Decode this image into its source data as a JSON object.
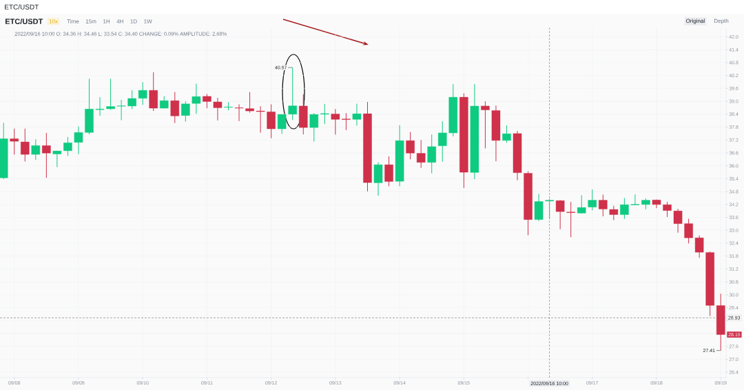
{
  "chart_data": {
    "type": "candlestick",
    "title": "ETC/USDT",
    "subtitle": "2022/09/16 10:00 O: 34.36 H: 34.46 L: 33.54 C: 34.40 CHANGE: 0.09% AMPLITUDE: 2.68%",
    "x": [
      "2022-09-07T22:00",
      "2022-09-08T02:00",
      "2022-09-08T06:00",
      "2022-09-08T10:00",
      "2022-09-08T14:00",
      "2022-09-08T18:00",
      "2022-09-08T22:00",
      "2022-09-09T02:00",
      "2022-09-09T06:00",
      "2022-09-09T10:00",
      "2022-09-09T14:00",
      "2022-09-09T18:00",
      "2022-09-09T22:00",
      "2022-09-10T02:00",
      "2022-09-10T06:00",
      "2022-09-10T10:00",
      "2022-09-10T14:00",
      "2022-09-10T18:00",
      "2022-09-10T22:00",
      "2022-09-11T02:00",
      "2022-09-11T06:00",
      "2022-09-11T10:00",
      "2022-09-11T14:00",
      "2022-09-11T18:00",
      "2022-09-11T22:00",
      "2022-09-12T02:00",
      "2022-09-12T06:00",
      "2022-09-12T10:00",
      "2022-09-12T14:00",
      "2022-09-12T18:00",
      "2022-09-12T22:00",
      "2022-09-13T02:00",
      "2022-09-13T06:00",
      "2022-09-13T10:00",
      "2022-09-13T14:00",
      "2022-09-13T18:00",
      "2022-09-13T22:00",
      "2022-09-14T02:00",
      "2022-09-14T06:00",
      "2022-09-14T10:00",
      "2022-09-14T14:00",
      "2022-09-14T18:00",
      "2022-09-14T22:00",
      "2022-09-15T02:00",
      "2022-09-15T06:00",
      "2022-09-15T10:00",
      "2022-09-15T14:00",
      "2022-09-15T18:00",
      "2022-09-15T22:00",
      "2022-09-16T02:00",
      "2022-09-16T06:00",
      "2022-09-16T10:00",
      "2022-09-16T14:00",
      "2022-09-16T18:00",
      "2022-09-16T22:00",
      "2022-09-17T02:00",
      "2022-09-17T06:00",
      "2022-09-17T10:00",
      "2022-09-17T14:00",
      "2022-09-17T18:00",
      "2022-09-17T22:00",
      "2022-09-18T02:00",
      "2022-09-18T06:00",
      "2022-09-18T10:00",
      "2022-09-18T14:00",
      "2022-09-18T18:00",
      "2022-09-18T22:00",
      "2022-09-19T02:00"
    ],
    "ohlc": [
      [
        35.44,
        38.0,
        35.38,
        37.26
      ],
      [
        37.26,
        37.73,
        36.52,
        37.14
      ],
      [
        37.11,
        37.73,
        36.2,
        36.53
      ],
      [
        36.53,
        37.23,
        36.28,
        36.94
      ],
      [
        36.94,
        37.53,
        35.44,
        36.59
      ],
      [
        36.55,
        36.7,
        35.94,
        36.69
      ],
      [
        36.7,
        37.34,
        36.46,
        37.07
      ],
      [
        37.09,
        37.83,
        36.54,
        37.55
      ],
      [
        37.55,
        40.05,
        37.46,
        38.64
      ],
      [
        38.61,
        39.19,
        38.33,
        38.64
      ],
      [
        38.65,
        40.05,
        38.61,
        38.76
      ],
      [
        38.77,
        39.07,
        38.12,
        38.79
      ],
      [
        38.78,
        39.52,
        38.64,
        39.13
      ],
      [
        39.14,
        39.89,
        38.84,
        39.51
      ],
      [
        39.51,
        40.35,
        38.55,
        38.68
      ],
      [
        38.68,
        39.24,
        38.66,
        39.03
      ],
      [
        39.03,
        39.43,
        37.99,
        38.32
      ],
      [
        38.34,
        39.0,
        38.05,
        38.88
      ],
      [
        38.9,
        39.82,
        38.42,
        39.22
      ],
      [
        39.23,
        39.34,
        38.68,
        38.99
      ],
      [
        38.97,
        39.16,
        38.11,
        38.7
      ],
      [
        38.72,
        38.96,
        38.58,
        38.74
      ],
      [
        38.7,
        38.86,
        38.08,
        38.68
      ],
      [
        38.66,
        39.43,
        38.47,
        38.55
      ],
      [
        38.55,
        38.77,
        37.54,
        38.52
      ],
      [
        38.51,
        38.86,
        37.28,
        37.72
      ],
      [
        37.72,
        38.39,
        37.48,
        38.39
      ],
      [
        38.4,
        40.57,
        38.13,
        38.79
      ],
      [
        38.78,
        39.33,
        37.46,
        37.78
      ],
      [
        37.78,
        38.45,
        37.13,
        38.39
      ],
      [
        38.4,
        38.88,
        37.94,
        38.43
      ],
      [
        38.41,
        38.64,
        37.45,
        38.16
      ],
      [
        38.18,
        38.45,
        37.66,
        38.15
      ],
      [
        38.16,
        38.89,
        37.87,
        38.42
      ],
      [
        38.42,
        38.97,
        34.81,
        35.22
      ],
      [
        35.21,
        36.16,
        34.61,
        36.05
      ],
      [
        36.05,
        36.44,
        35.05,
        35.27
      ],
      [
        35.28,
        37.89,
        35.05,
        37.17
      ],
      [
        37.17,
        37.57,
        36.3,
        36.59
      ],
      [
        36.58,
        37.2,
        35.9,
        36.16
      ],
      [
        36.16,
        37.46,
        35.65,
        36.89
      ],
      [
        36.93,
        38.07,
        36.19,
        37.53
      ],
      [
        37.53,
        39.8,
        37.37,
        39.19
      ],
      [
        39.19,
        39.37,
        34.97,
        35.7
      ],
      [
        35.69,
        39.8,
        35.38,
        38.78
      ],
      [
        38.78,
        39.0,
        36.81,
        38.6
      ],
      [
        38.57,
        38.8,
        36.21,
        37.18
      ],
      [
        37.18,
        37.88,
        37.07,
        37.49
      ],
      [
        37.5,
        37.62,
        35.33,
        35.68
      ],
      [
        35.65,
        35.74,
        32.77,
        33.5
      ],
      [
        33.5,
        34.7,
        33.43,
        34.34
      ],
      [
        34.36,
        34.46,
        33.54,
        34.4
      ],
      [
        34.38,
        34.4,
        33.05,
        33.87
      ],
      [
        33.85,
        34.32,
        32.68,
        33.82
      ],
      [
        33.8,
        34.63,
        33.78,
        34.06
      ],
      [
        34.08,
        34.9,
        33.93,
        34.4
      ],
      [
        34.4,
        34.66,
        33.65,
        33.99
      ],
      [
        33.97,
        34.14,
        33.47,
        33.73
      ],
      [
        33.73,
        34.5,
        33.53,
        34.19
      ],
      [
        34.18,
        34.67,
        34.17,
        34.21
      ],
      [
        34.2,
        34.48,
        33.98,
        34.4
      ],
      [
        34.41,
        34.43,
        34.03,
        34.2
      ],
      [
        34.19,
        34.32,
        33.62,
        33.92
      ],
      [
        33.9,
        34.0,
        32.89,
        33.31
      ],
      [
        33.31,
        33.54,
        32.39,
        32.65
      ],
      [
        32.65,
        32.76,
        31.72,
        31.98
      ],
      [
        31.97,
        32.01,
        29.01,
        29.51
      ],
      [
        29.5,
        30.05,
        27.41,
        28.15
      ]
    ],
    "colors": [
      "#0ecb81",
      "#cf304a",
      "#cf304a",
      "#0ecb81",
      "#cf304a",
      "#0ecb81",
      "#0ecb81",
      "#0ecb81",
      "#0ecb81",
      "#0ecb81",
      "#0ecb81",
      "#0ecb81",
      "#0ecb81",
      "#0ecb81",
      "#cf304a",
      "#0ecb81",
      "#cf304a",
      "#0ecb81",
      "#0ecb81",
      "#cf304a",
      "#cf304a",
      "#0ecb81",
      "#cf304a",
      "#cf304a",
      "#cf304a",
      "#cf304a",
      "#0ecb81",
      "#0ecb81",
      "#cf304a",
      "#0ecb81",
      "#0ecb81",
      "#cf304a",
      "#cf304a",
      "#0ecb81",
      "#cf304a",
      "#0ecb81",
      "#cf304a",
      "#0ecb81",
      "#cf304a",
      "#cf304a",
      "#0ecb81",
      "#0ecb81",
      "#0ecb81",
      "#cf304a",
      "#0ecb81",
      "#cf304a",
      "#cf304a",
      "#0ecb81",
      "#cf304a",
      "#cf304a",
      "#0ecb81",
      "#0ecb81",
      "#cf304a",
      "#cf304a",
      "#0ecb81",
      "#0ecb81",
      "#cf304a",
      "#cf304a",
      "#0ecb81",
      "#0ecb81",
      "#0ecb81",
      "#cf304a",
      "#cf304a",
      "#cf304a",
      "#cf304a",
      "#cf304a",
      "#cf304a",
      "#cf304a"
    ],
    "xlim": [
      "2022-09-07T20:40",
      "2022-09-19T04:00"
    ],
    "xticks": [
      {
        "value": "2022-09-08T02:00",
        "label": "09/08"
      },
      {
        "value": "2022-09-09T02:00",
        "label": "09/09"
      },
      {
        "value": "2022-09-10T02:00",
        "label": "09/10"
      },
      {
        "value": "2022-09-11T02:00",
        "label": "09/11"
      },
      {
        "value": "2022-09-12T02:00",
        "label": "09/12"
      },
      {
        "value": "2022-09-13T02:00",
        "label": "09/13"
      },
      {
        "value": "2022-09-14T02:00",
        "label": "09/14"
      },
      {
        "value": "2022-09-15T02:00",
        "label": "09/15"
      },
      {
        "value": "2022-09-16T02:00",
        "label": null
      },
      {
        "value": "2022-09-17T02:00",
        "label": "09/17"
      },
      {
        "value": "2022-09-18T02:00",
        "label": "09/18"
      },
      {
        "value": "2022-09-19T02:00",
        "label": "09/19"
      }
    ],
    "ylim": [
      26.15,
      42.43
    ],
    "yticks": [
      {
        "value": 26.4,
        "label": "26.4"
      },
      {
        "value": 27,
        "label": "27.0"
      },
      {
        "value": 27.6,
        "label": "27.6"
      },
      {
        "value": 28.2,
        "label": null
      },
      {
        "value": 28.8,
        "label": null
      },
      {
        "value": 29.4,
        "label": "29.4"
      },
      {
        "value": 30,
        "label": "30.0"
      },
      {
        "value": 30.6,
        "label": "30.6"
      },
      {
        "value": 31.2,
        "label": "31.2"
      },
      {
        "value": 31.8,
        "label": "31.8"
      },
      {
        "value": 32.4,
        "label": "32.4"
      },
      {
        "value": 33,
        "label": "33.0"
      },
      {
        "value": 33.6,
        "label": "33.6"
      },
      {
        "value": 34.2,
        "label": "34.2"
      },
      {
        "value": 34.8,
        "label": "34.8"
      },
      {
        "value": 35.4,
        "label": "35.4"
      },
      {
        "value": 36,
        "label": "36.0"
      },
      {
        "value": 36.6,
        "label": "36.6"
      },
      {
        "value": 37.2,
        "label": "37.2"
      },
      {
        "value": 37.8,
        "label": "37.8"
      },
      {
        "value": 38.4,
        "label": "38.4"
      },
      {
        "value": 39,
        "label": "39.0"
      },
      {
        "value": 39.6,
        "label": "39.6"
      },
      {
        "value": 40.2,
        "label": "40.2"
      },
      {
        "value": 40.8,
        "label": "40.8"
      },
      {
        "value": 41.4,
        "label": "41.4"
      },
      {
        "value": 42,
        "label": "42.0"
      }
    ],
    "grid": true,
    "ref_lines": [
      {
        "axis": "x",
        "value": "2022-09-16T10:00",
        "label": "2022/09/16 10:00",
        "line_style": "dashed",
        "color": "#707070"
      },
      {
        "axis": "y",
        "value": 28.93,
        "label": "28.93",
        "line_style": "dashed",
        "color": "#707070"
      }
    ],
    "annotations": [
      "10x",
      "Time",
      "15m",
      "1H",
      "4H",
      "1D",
      "1W",
      "Original",
      "Depth",
      {
        "text": "40.57",
        "x": "2022-09-12T10:00",
        "y": 40.57
      },
      {
        "text": "27.41",
        "x": "2022-09-19T02:00",
        "y": 27.41
      },
      {
        "text": "28.15",
        "y": 28.15
      }
    ]
  }
}
